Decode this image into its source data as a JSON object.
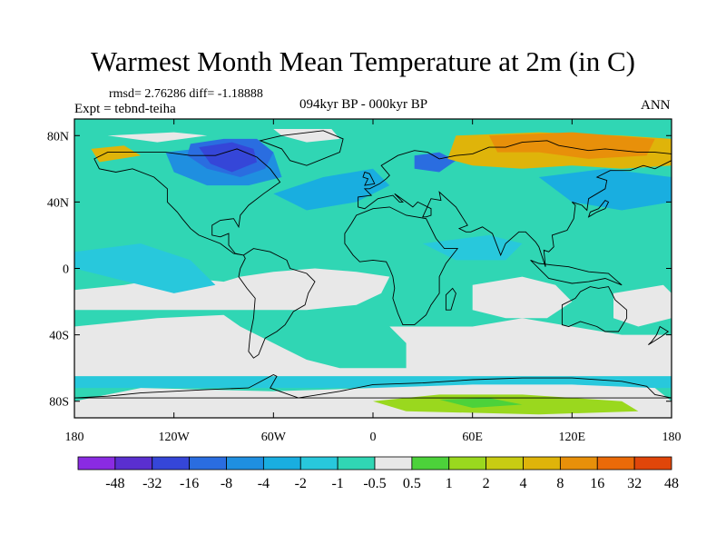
{
  "title": "Warmest Month Mean Temperature at 2m (in C)",
  "stats": "rmsd= 2.76286 diff= -1.18888",
  "experiment": "Expt = tebnd-teiha",
  "period": "094kyr BP - 000kyr BP",
  "season": "ANN",
  "axes": {
    "y_ticks": [
      "80N",
      "40N",
      "0",
      "40S",
      "80S"
    ],
    "x_ticks": [
      "180",
      "120W",
      "60W",
      "0",
      "60E",
      "120E",
      "180"
    ]
  },
  "colorbar": {
    "labels": [
      "-48",
      "-32",
      "-16",
      "-8",
      "-4",
      "-2",
      "-1",
      "-0.5",
      "0.5",
      "1",
      "2",
      "4",
      "8",
      "16",
      "32",
      "48"
    ],
    "colors": [
      "#8a2be2",
      "#5a2fd0",
      "#3546d8",
      "#2a6de0",
      "#1f8fe0",
      "#19aee0",
      "#28c8dc",
      "#30d6b4",
      "#e8e8e8",
      "#4cd23a",
      "#9ad81e",
      "#c8cc12",
      "#dfb40a",
      "#e8900a",
      "#ea6a08",
      "#e0460a"
    ]
  },
  "palette": {
    "neutral": "#e8e8e8",
    "cool1": "#30d6b4",
    "cool2": "#28c8dc",
    "cool3": "#19aee0",
    "cool4": "#1f8fe0",
    "cold": "#3546d8",
    "cold2": "#2a6de0",
    "warm1": "#4cd23a",
    "warm2": "#9ad81e",
    "warm3": "#dfb40a",
    "warm4": "#e8900a",
    "hot": "#ea6a08",
    "coast": "#000000"
  }
}
